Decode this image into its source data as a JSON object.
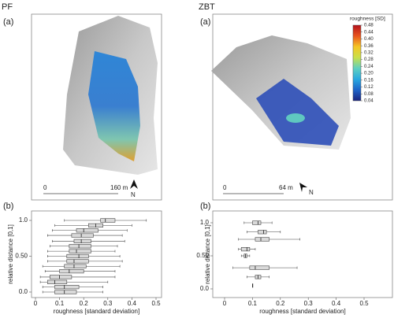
{
  "maps": [
    {
      "title": "PF",
      "label": "(a)",
      "scale": [
        "0",
        "160 m"
      ],
      "north": "N"
    },
    {
      "title": "ZBT",
      "label": "(a)",
      "scale": [
        "0",
        "64 m"
      ],
      "north": "N"
    }
  ],
  "colorbar": {
    "title": "roughness [SD]",
    "colors": [
      "#1a237e",
      "#1e63c8",
      "#29a9e0",
      "#5fd0c0",
      "#c8e04a",
      "#f5c623",
      "#e8541e",
      "#b5121b"
    ],
    "ticks": [
      0.04,
      0.08,
      0.12,
      0.16,
      {
        "value": 0.2,
        "label": "0.20"
      },
      0.24,
      0.28,
      0.32,
      0.36,
      {
        "value": 0.4,
        "label": "0.40"
      },
      0.44,
      0.48
    ]
  },
  "chart_data": [
    {
      "type": "box",
      "label": "(b)",
      "xlabel": "roughness [standard deviation]",
      "ylabel": "relative distance [0,1]",
      "xlim": [
        0,
        0.5
      ],
      "xticks": [
        0,
        0.1,
        0.2,
        0.3,
        0.4,
        0.5
      ],
      "ylim": [
        0,
        1
      ],
      "yticks": [
        {
          "value": 0,
          "label": "0.0"
        },
        {
          "value": 0.5,
          "label": "0.50"
        },
        {
          "value": 1,
          "label": "1.0"
        }
      ],
      "color": "#d9d9d9",
      "boxes": {
        "y": [
          1.0,
          0.93,
          0.86,
          0.79,
          0.71,
          0.64,
          0.57,
          0.5,
          0.43,
          0.36,
          0.29,
          0.21,
          0.14,
          0.07,
          0.0
        ],
        "min": [
          0.12,
          0.08,
          0.07,
          0.05,
          0.07,
          0.06,
          0.05,
          0.05,
          0.05,
          0.03,
          0.04,
          0.02,
          0.02,
          0.03,
          0.03
        ],
        "q1": [
          0.27,
          0.22,
          0.17,
          0.15,
          0.16,
          0.14,
          0.14,
          0.13,
          0.13,
          0.12,
          0.1,
          0.06,
          0.05,
          0.08,
          0.08
        ],
        "median": [
          0.29,
          0.25,
          0.2,
          0.19,
          0.19,
          0.18,
          0.17,
          0.18,
          0.16,
          0.16,
          0.14,
          0.1,
          0.08,
          0.12,
          0.12
        ],
        "q3": [
          0.33,
          0.28,
          0.26,
          0.24,
          0.23,
          0.23,
          0.23,
          0.22,
          0.22,
          0.21,
          0.2,
          0.15,
          0.13,
          0.18,
          0.17
        ],
        "max": [
          0.46,
          0.4,
          0.38,
          0.36,
          0.37,
          0.34,
          0.33,
          0.35,
          0.36,
          0.35,
          0.33,
          0.33,
          0.3,
          0.28,
          0.28
        ]
      }
    },
    {
      "type": "box",
      "label": "(b)",
      "xlabel": "roughness [standard deviation]",
      "ylabel": "relative distance [0,1]",
      "xlim": [
        0,
        0.5
      ],
      "xticks": [
        0,
        0.1,
        0.2,
        0.3,
        0.4,
        0.5
      ],
      "ylim": [
        0,
        1
      ],
      "yticks": [
        {
          "value": 0,
          "label": "0.0"
        },
        {
          "value": 0.5,
          "label": "0.50"
        },
        {
          "value": 1,
          "label": "1.0"
        }
      ],
      "color": "#d9d9d9",
      "boxes": {
        "y": [
          1.0,
          0.86,
          0.75,
          0.6,
          0.5,
          0.32,
          0.18,
          0.05
        ],
        "min": [
          0.07,
          0.08,
          0.05,
          0.05,
          0.06,
          0.03,
          0.08,
          0.1
        ],
        "q1": [
          0.1,
          0.12,
          0.11,
          0.06,
          0.07,
          0.09,
          0.11,
          0.1
        ],
        "median": [
          0.12,
          0.14,
          0.13,
          0.08,
          0.075,
          0.11,
          0.12,
          0.1
        ],
        "q3": [
          0.13,
          0.15,
          0.16,
          0.09,
          0.08,
          0.16,
          0.13,
          0.1
        ],
        "max": [
          0.17,
          0.2,
          0.27,
          0.11,
          0.09,
          0.26,
          0.16,
          0.1
        ]
      }
    }
  ]
}
